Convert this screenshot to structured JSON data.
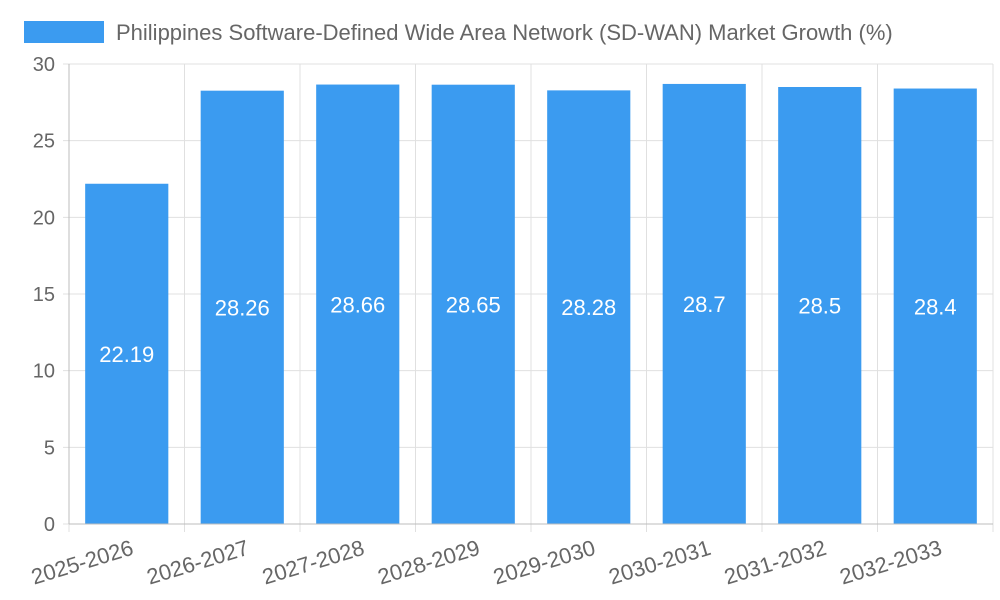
{
  "chart_data": {
    "type": "bar",
    "title": "",
    "xlabel": "",
    "ylabel": "",
    "legend": {
      "position": "top",
      "label": "Philippines Software-Defined Wide Area Network (SD-WAN) Market Growth (%)"
    },
    "categories": [
      "2025-2026",
      "2026-2027",
      "2027-2028",
      "2028-2029",
      "2029-2030",
      "2030-2031",
      "2031-2032",
      "2032-2033"
    ],
    "series": [
      {
        "name": "Philippines Software-Defined Wide Area Network (SD-WAN) Market Growth (%)",
        "values": [
          22.19,
          28.26,
          28.66,
          28.65,
          28.28,
          28.7,
          28.5,
          28.4
        ],
        "labels": [
          "22.19",
          "28.26",
          "28.66",
          "28.65",
          "28.28",
          "28.7",
          "28.5",
          "28.4"
        ]
      }
    ],
    "ylim": [
      0,
      30
    ],
    "yticks": [
      0,
      5,
      10,
      15,
      20,
      25,
      30
    ],
    "grid": true,
    "colors": {
      "bar": "#3b9bf0",
      "grid": "#e0e0e0",
      "text": "#666666",
      "label": "#ffffff"
    }
  }
}
